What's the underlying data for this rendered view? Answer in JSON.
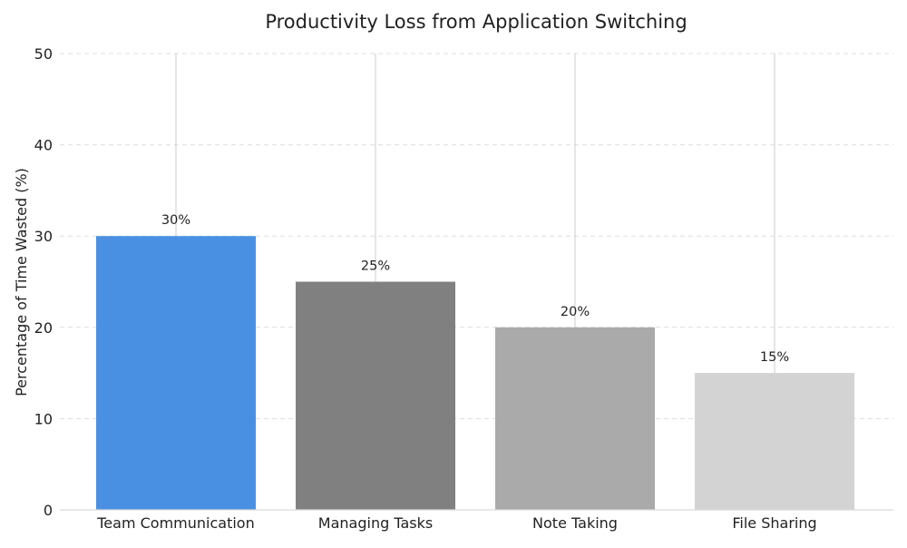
{
  "chart_data": {
    "type": "bar",
    "title": "Productivity Loss from Application Switching",
    "xlabel": "",
    "ylabel": "Percentage of Time Wasted (%)",
    "categories": [
      "Team Communication",
      "Managing Tasks",
      "Note Taking",
      "File Sharing"
    ],
    "values": [
      30,
      25,
      20,
      15
    ],
    "value_labels": [
      "30%",
      "25%",
      "20%",
      "15%"
    ],
    "bar_colors": [
      "#4a90e2",
      "#808080",
      "#aaaaaa",
      "#d3d3d3"
    ],
    "ylim": [
      0,
      50
    ],
    "yticks": [
      0,
      10,
      20,
      30,
      40,
      50
    ],
    "ytick_labels": [
      "0",
      "10",
      "20",
      "30",
      "40",
      "50"
    ],
    "grid": {
      "y": true,
      "x_at_categories": true
    },
    "legend": "none"
  }
}
